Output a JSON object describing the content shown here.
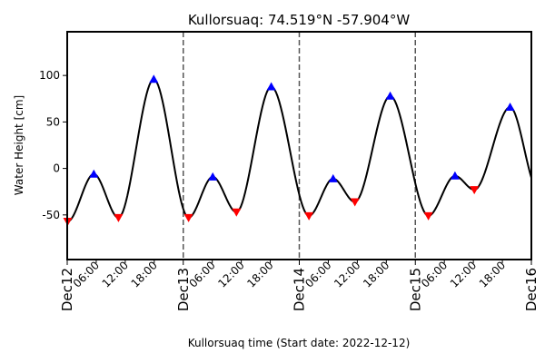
{
  "chart_data": {
    "type": "line",
    "title": "Kullorsuaq: 74.519°N -57.904°W",
    "xlabel": "Kullorsuaq time (Start date: 2022-12-12)",
    "ylabel": "Water Height [cm]",
    "x_unit": "hours",
    "xlim": [
      0,
      96
    ],
    "ylim": [
      -98,
      147
    ],
    "yticks": [
      -50,
      0,
      50,
      100
    ],
    "day_ticks": [
      {
        "x": 0,
        "label": "Dec12"
      },
      {
        "x": 24,
        "label": "Dec13"
      },
      {
        "x": 48,
        "label": "Dec14"
      },
      {
        "x": 72,
        "label": "Dec15"
      },
      {
        "x": 96,
        "label": "Dec16"
      }
    ],
    "hour_ticks": [
      {
        "x": 6,
        "label": "06:00"
      },
      {
        "x": 12,
        "label": "12:00"
      },
      {
        "x": 18,
        "label": "18:00"
      },
      {
        "x": 30,
        "label": "06:00"
      },
      {
        "x": 36,
        "label": "12:00"
      },
      {
        "x": 42,
        "label": "18:00"
      },
      {
        "x": 54,
        "label": "06:00"
      },
      {
        "x": 60,
        "label": "12:00"
      },
      {
        "x": 66,
        "label": "18:00"
      },
      {
        "x": 78,
        "label": "06:00"
      },
      {
        "x": 84,
        "label": "12:00"
      },
      {
        "x": 90,
        "label": "18:00"
      }
    ],
    "day_separators": [
      24,
      48,
      72
    ],
    "high_tides": [
      {
        "x": 5.5,
        "y": -6
      },
      {
        "x": 17.9,
        "y": 96
      },
      {
        "x": 30.1,
        "y": -9
      },
      {
        "x": 42.2,
        "y": 88
      },
      {
        "x": 55.0,
        "y": -11
      },
      {
        "x": 66.8,
        "y": 78
      },
      {
        "x": 80.2,
        "y": -8
      },
      {
        "x": 91.6,
        "y": 66
      }
    ],
    "low_tides": [
      {
        "x": 0.1,
        "y": -57
      },
      {
        "x": 10.6,
        "y": -53
      },
      {
        "x": 25.1,
        "y": -53
      },
      {
        "x": 35.0,
        "y": -47
      },
      {
        "x": 50.0,
        "y": -51
      },
      {
        "x": 59.5,
        "y": -36
      },
      {
        "x": 74.7,
        "y": -51
      },
      {
        "x": 84.2,
        "y": -23
      }
    ],
    "end_point": {
      "x": 96,
      "y": -10
    },
    "colors": {
      "line": "#000000",
      "high": "#0000ff",
      "low": "#ff0000",
      "separator": "#555555"
    }
  }
}
